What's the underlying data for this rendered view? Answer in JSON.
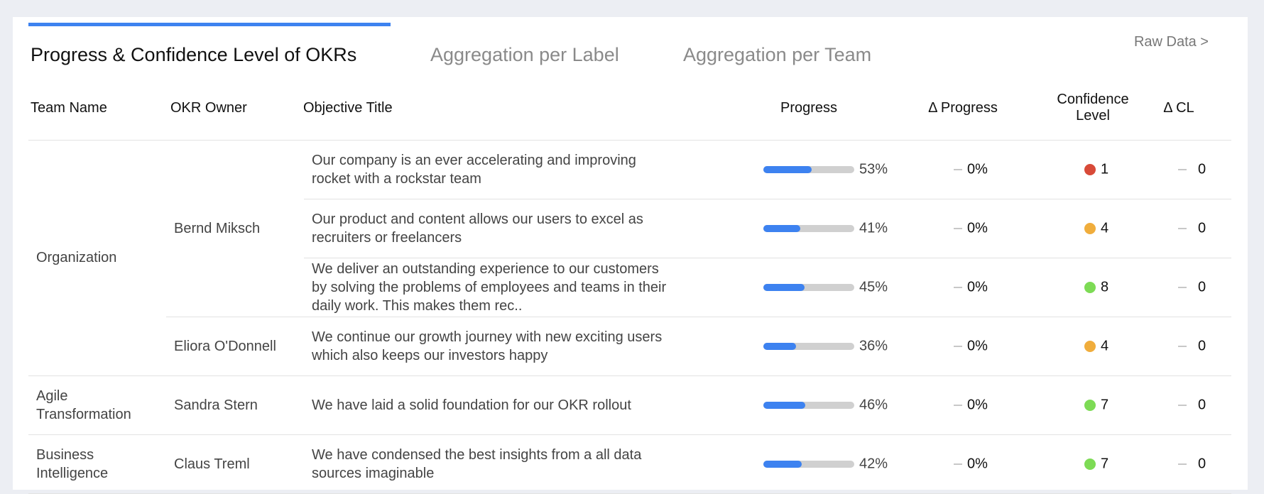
{
  "tabs": [
    "Progress & Confidence Level of OKRs",
    "Aggregation per Label",
    "Aggregation per Team"
  ],
  "active_tab": 0,
  "raw_data_link": "Raw Data >",
  "columns": [
    "Team Name",
    "OKR Owner",
    "Objective Title",
    "Progress",
    "Δ Progress",
    "Confidence Level",
    "Δ CL"
  ],
  "progress_range": [
    0,
    100
  ],
  "teams": [
    {
      "name": "Organization",
      "owners": [
        {
          "name": "Bernd Miksch",
          "objectives": [
            {
              "title": "Our company is an ever accelerating and improving rocket with a rockstar team",
              "progress": 53,
              "progress_label": "53%",
              "delta_progress": "0%",
              "confidence": 1,
              "confidence_color": "#d84a38",
              "delta_cl": 0
            },
            {
              "title": "Our product and content allows our users to excel as recruiters or freelancers",
              "progress": 41,
              "progress_label": "41%",
              "delta_progress": "0%",
              "confidence": 4,
              "confidence_color": "#f0ad3c",
              "delta_cl": 0
            },
            {
              "title": "We deliver an outstanding experience to our customers by solving the problems of employees and teams in their daily work. This makes them rec..",
              "progress": 45,
              "progress_label": "45%",
              "delta_progress": "0%",
              "confidence": 8,
              "confidence_color": "#7ddb55",
              "delta_cl": 0
            }
          ]
        },
        {
          "name": "Eliora O'Donnell",
          "objectives": [
            {
              "title": "We continue our growth journey with new exciting users which also keeps our investors happy",
              "progress": 36,
              "progress_label": "36%",
              "delta_progress": "0%",
              "confidence": 4,
              "confidence_color": "#f0ad3c",
              "delta_cl": 0
            }
          ]
        }
      ]
    },
    {
      "name": "Agile Transformation",
      "owners": [
        {
          "name": "Sandra Stern",
          "objectives": [
            {
              "title": "We have laid a solid foundation for our OKR rollout",
              "progress": 46,
              "progress_label": "46%",
              "delta_progress": "0%",
              "confidence": 7,
              "confidence_color": "#7ddb55",
              "delta_cl": 0
            }
          ]
        }
      ]
    },
    {
      "name": "Business Intelligence",
      "owners": [
        {
          "name": "Claus Treml",
          "objectives": [
            {
              "title": "We have condensed the best insights from a all data sources imaginable",
              "progress": 42,
              "progress_label": "42%",
              "delta_progress": "0%",
              "confidence": 7,
              "confidence_color": "#7ddb55",
              "delta_cl": 0
            }
          ]
        }
      ]
    }
  ]
}
